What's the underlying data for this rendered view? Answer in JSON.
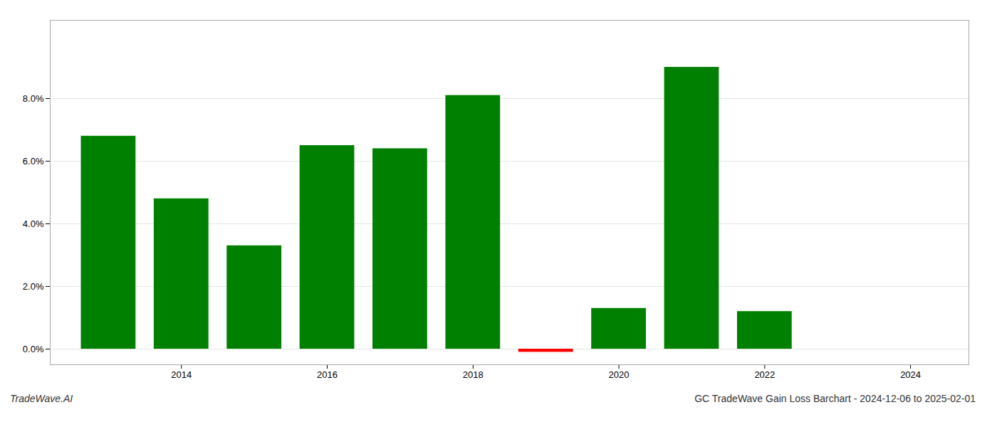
{
  "chart_data": {
    "type": "bar",
    "title": "GC TradeWave Gain Loss Barchart - 2024-12-06 to 2025-02-01",
    "annotations": [
      "TradeWave.AI"
    ],
    "x": [
      2013,
      2014,
      2015,
      2016,
      2017,
      2018,
      2019,
      2020,
      2021,
      2022,
      2023
    ],
    "values": [
      0.068,
      0.048,
      0.033,
      0.065,
      0.064,
      0.081,
      -0.001,
      0.013,
      0.09,
      0.012,
      0.0
    ],
    "colors": [
      "#008000",
      "#008000",
      "#008000",
      "#008000",
      "#008000",
      "#008000",
      "#ff0000",
      "#008000",
      "#008000",
      "#008000",
      "#008000"
    ],
    "xlim": [
      2012.2,
      2024.8
    ],
    "xticks": [
      2014,
      2016,
      2018,
      2020,
      2022,
      2024
    ],
    "ylim": [
      -0.005,
      0.105
    ],
    "yticks": [
      {
        "value": 0.0,
        "label": "0.0%"
      },
      {
        "value": 0.02,
        "label": "2.0%"
      },
      {
        "value": 0.04,
        "label": "4.0%"
      },
      {
        "value": 0.06,
        "label": "6.0%"
      },
      {
        "value": 0.08,
        "label": "8.0%"
      }
    ],
    "grid": true
  }
}
